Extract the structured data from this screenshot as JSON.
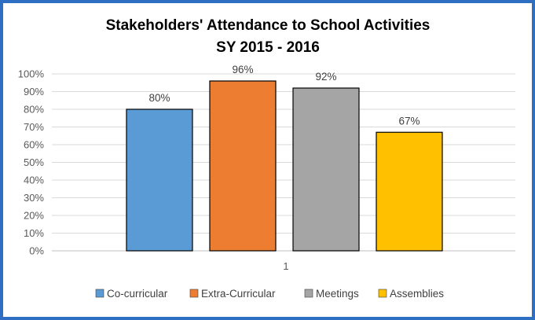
{
  "chart_data": {
    "type": "bar",
    "title": "Stakeholders' Attendance to School Activities",
    "subtitle": "SY 2015 - 2016",
    "categories": [
      "1"
    ],
    "series": [
      {
        "name": "Co-curricular",
        "values": [
          0.8
        ],
        "label": "80%",
        "color": "#5b9bd5"
      },
      {
        "name": "Extra-Curricular",
        "values": [
          0.96
        ],
        "label": "96%",
        "color": "#ed7d31"
      },
      {
        "name": "Meetings",
        "values": [
          0.92
        ],
        "label": "92%",
        "color": "#a5a5a5"
      },
      {
        "name": "Assemblies",
        "values": [
          0.67
        ],
        "label": "67%",
        "color": "#ffc000"
      }
    ],
    "ylim": [
      0,
      1
    ],
    "yticks": [
      "0%",
      "10%",
      "20%",
      "30%",
      "40%",
      "50%",
      "60%",
      "70%",
      "80%",
      "90%",
      "100%"
    ],
    "xlabel": "",
    "ylabel": "",
    "grid": true,
    "legend": "bottom",
    "frame_color": "#2e6fc4"
  }
}
